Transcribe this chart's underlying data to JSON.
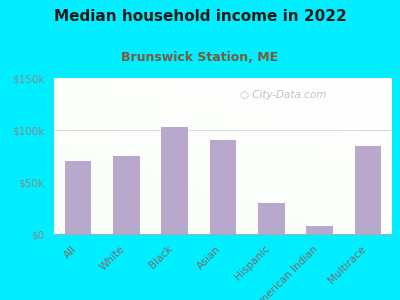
{
  "title": "Median household income in 2022",
  "subtitle": "Brunswick Station, ME",
  "categories": [
    "All",
    "White",
    "Black",
    "Asian",
    "Hispanic",
    "American Indian",
    "Multirace"
  ],
  "values": [
    70000,
    75000,
    103000,
    90000,
    30000,
    8000,
    85000
  ],
  "bar_color": "#b8a8cc",
  "background_outer": "#00eeff",
  "title_color": "#1a1a1a",
  "subtitle_color": "#7a5a3a",
  "tick_color": "#888888",
  "label_color": "#7a6a6a",
  "ylim": [
    0,
    150000
  ],
  "yticks": [
    0,
    50000,
    100000,
    150000
  ],
  "ytick_labels": [
    "$0",
    "$50k",
    "$100k",
    "$150k"
  ],
  "watermark": "City-Data.com",
  "title_fontsize": 11,
  "subtitle_fontsize": 9,
  "tick_fontsize": 7.5,
  "label_fontsize": 7.5
}
